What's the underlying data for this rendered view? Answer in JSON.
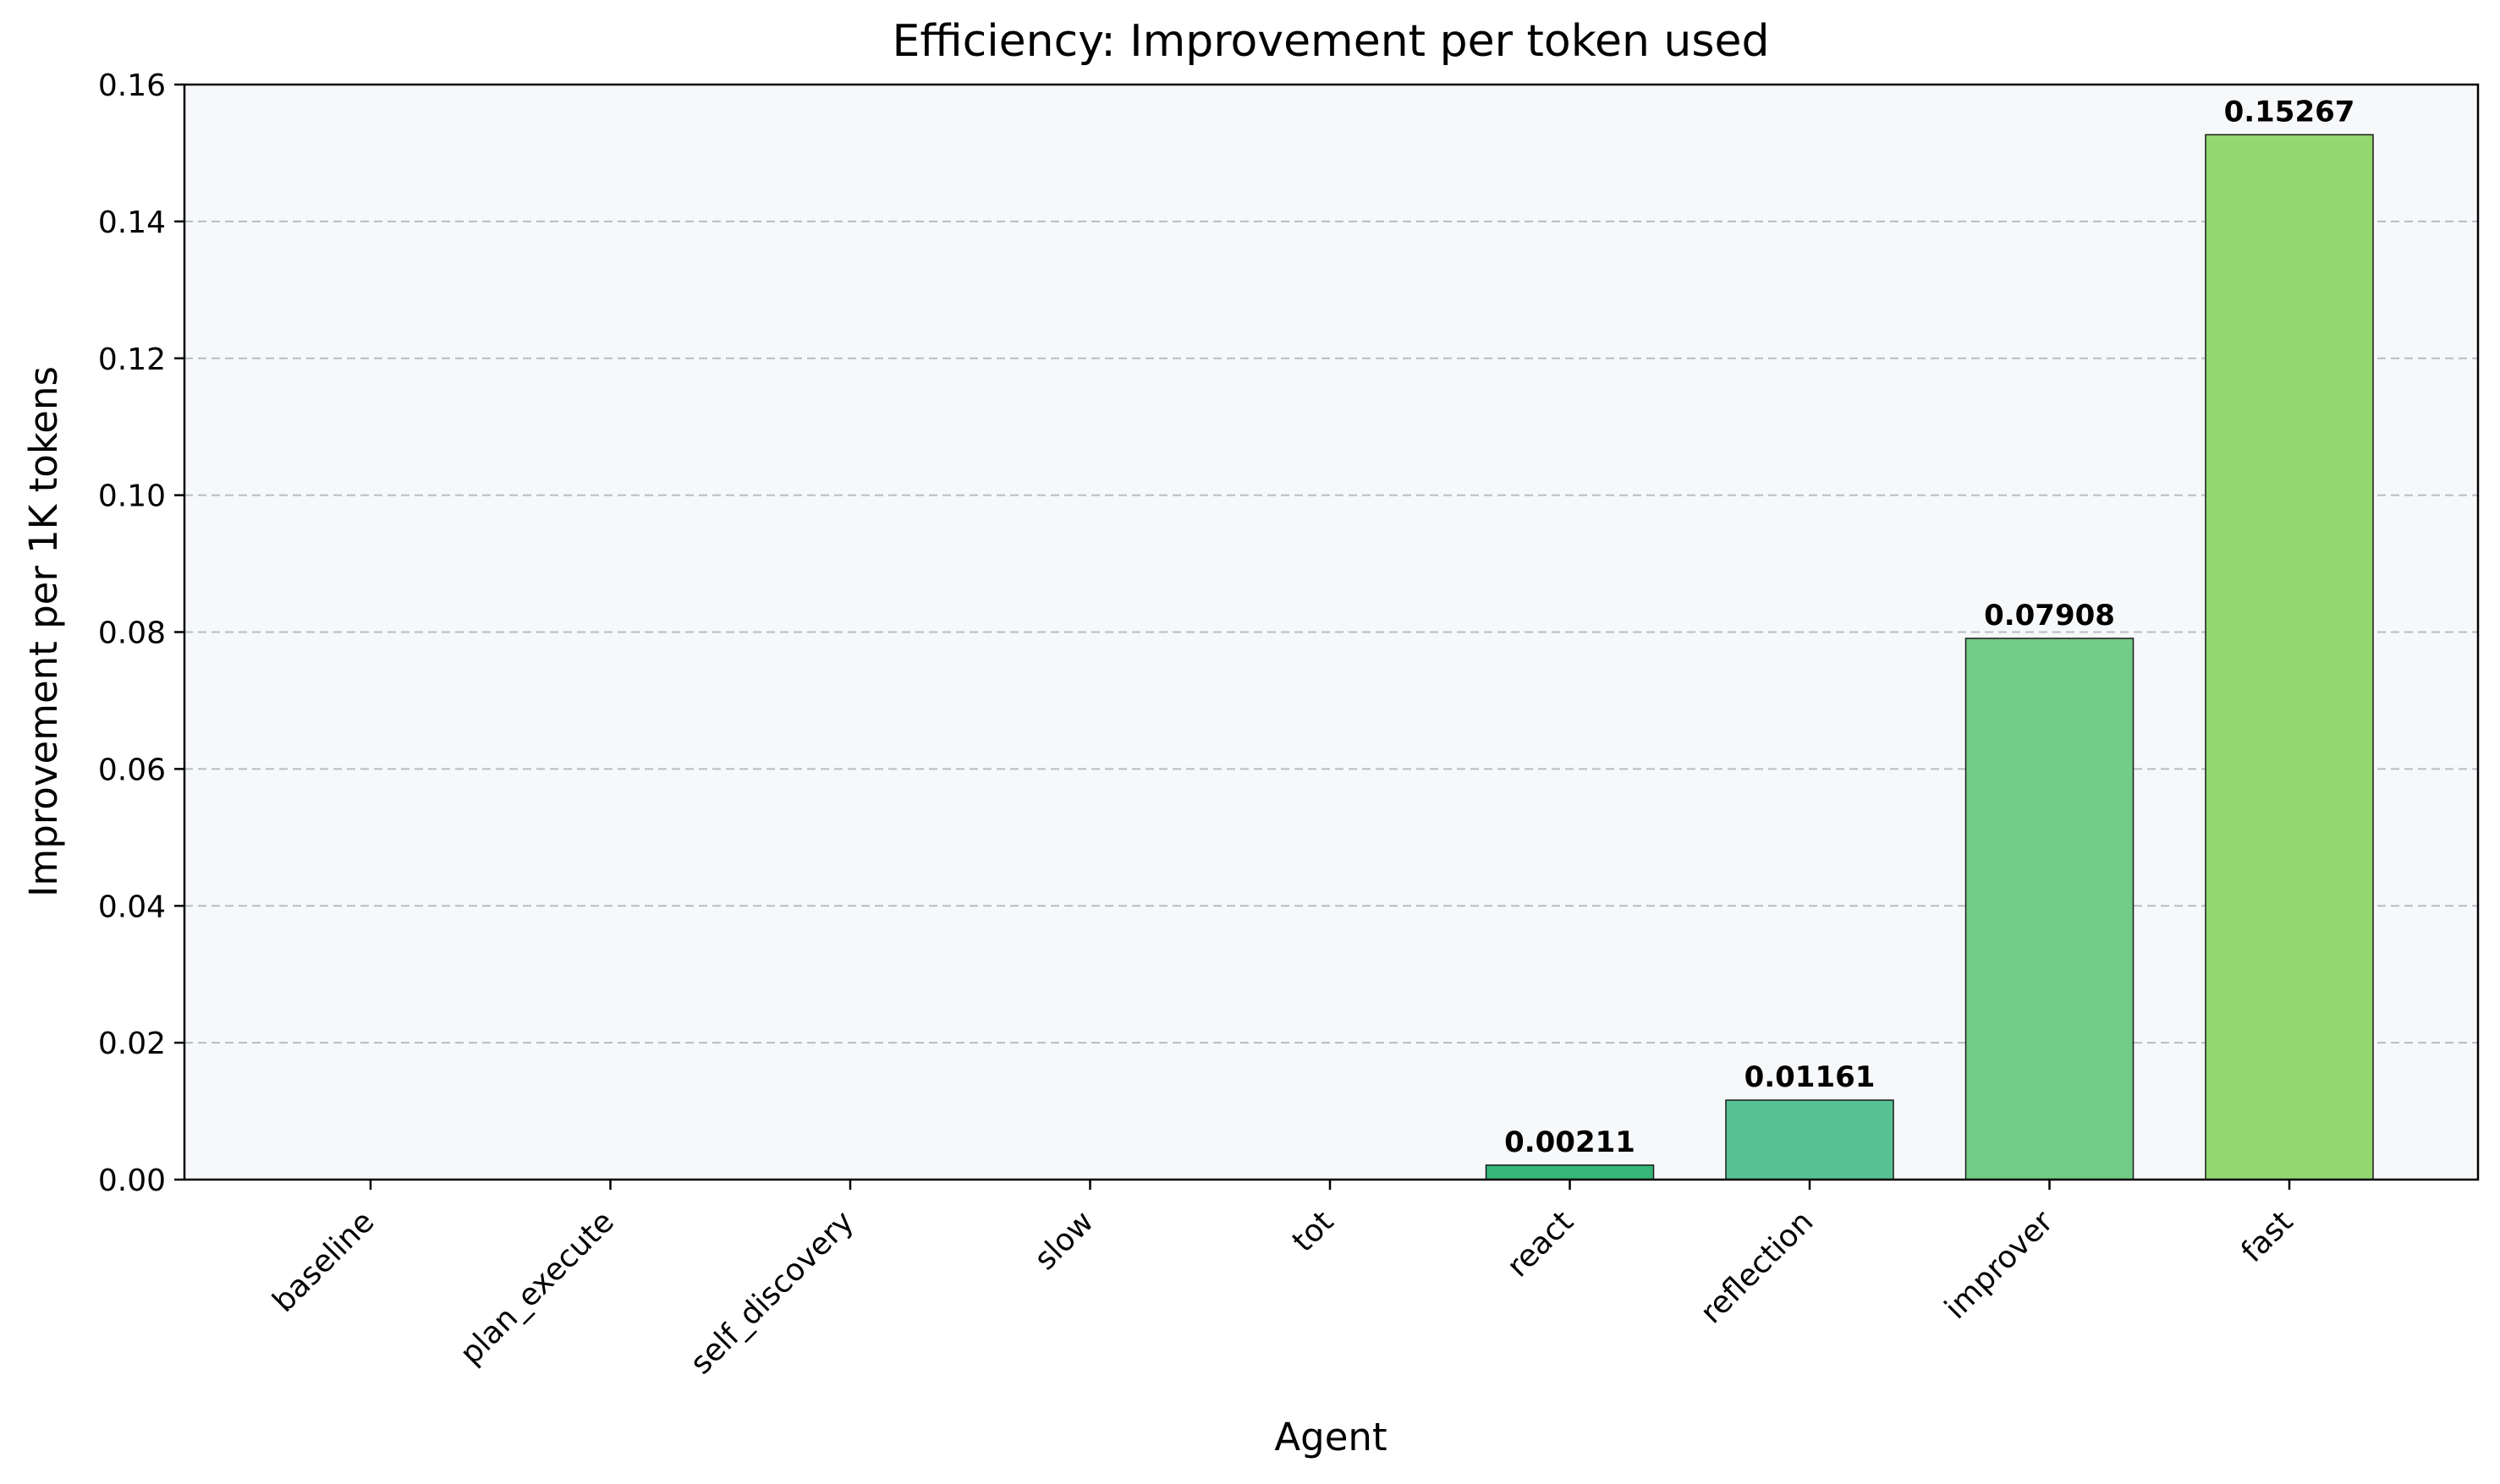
{
  "chart_data": {
    "type": "bar",
    "title": "Efficiency: Improvement per token used",
    "xlabel": "Agent",
    "ylabel": "Improvement per 1K tokens",
    "categories": [
      "baseline",
      "plan_execute",
      "self_discovery",
      "slow",
      "tot",
      "react",
      "reflection",
      "improver",
      "fast"
    ],
    "values": [
      0,
      0,
      0,
      0,
      0,
      0.00211,
      0.01161,
      0.07908,
      0.15267
    ],
    "data_labels": [
      "",
      "",
      "",
      "",
      "",
      "0.00211",
      "0.01161",
      "0.07908",
      "0.15267"
    ],
    "bar_colors": [
      "#46327e",
      "#3e4989",
      "#31688e",
      "#26828e",
      "#1f9e89",
      "#35b779",
      "#58c193",
      "#72cd87",
      "#93d871"
    ],
    "ylim": [
      0,
      0.16
    ],
    "yticks": [
      0,
      0.02,
      0.04,
      0.06,
      0.08,
      0.1,
      0.12,
      0.14,
      0.16
    ],
    "ytick_labels": [
      "0.00",
      "0.02",
      "0.04",
      "0.06",
      "0.08",
      "0.10",
      "0.12",
      "0.14",
      "0.16"
    ],
    "grid": "y-dashed",
    "plot_background": "#f7f8fa",
    "edge_color": "#1a1a1a"
  }
}
